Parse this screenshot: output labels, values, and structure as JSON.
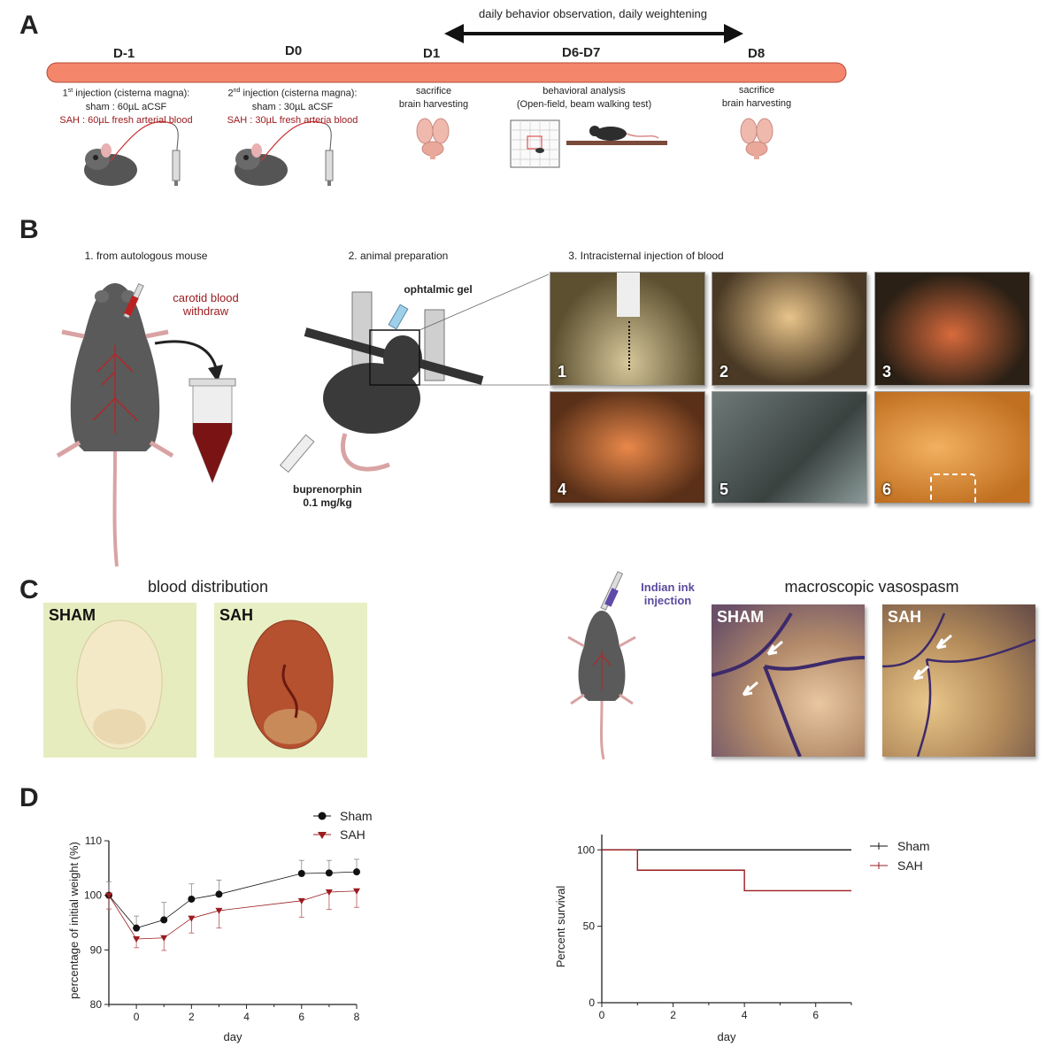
{
  "panels": {
    "A": "A",
    "B": "B",
    "C": "C",
    "D": "D"
  },
  "timeline": {
    "top_arrow_label": "daily behavior observation,  daily weightening",
    "days": [
      "D-1",
      "D0",
      "D1",
      "D6-D7",
      "D8"
    ],
    "steps": [
      {
        "line1_pre": "1",
        "line1_sup": "st",
        "line1_post": " injection (cisterna magna):",
        "line2": "sham : 60µL aCSF",
        "line3": "SAH : 60µL fresh arterial blood"
      },
      {
        "line1_pre": "2",
        "line1_sup": "nd",
        "line1_post": " injection (cisterna magna):",
        "line2": "sham : 30µL aCSF",
        "line3": "SAH : 30µL fresh arteria blood"
      },
      {
        "line1": "sacrifice",
        "line2": "brain harvesting"
      },
      {
        "line1": "behavioral analysis",
        "line2": "(Open-field, beam walking test)"
      },
      {
        "line1": "sacrifice",
        "line2": "brain harvesting"
      }
    ]
  },
  "panelB": {
    "step1": "1. from autologous mouse",
    "step2": "2. animal preparation",
    "step3": "3. Intracisternal injection of blood",
    "carotid1": "carotid blood",
    "carotid2": "withdraw",
    "gel": "ophtalmic gel",
    "bup1": "buprenorphin",
    "bup2": "0.1 mg/kg",
    "photo_numbers": [
      "1",
      "2",
      "3",
      "4",
      "5",
      "6"
    ]
  },
  "panelC": {
    "blood_title": "blood distribution",
    "vaso_title": "macroscopic vasospasm",
    "ink1": "Indian ink",
    "ink2": "injection",
    "sham": "SHAM",
    "sah": "SAH"
  },
  "colors": {
    "sham": "#111111",
    "sah": "#9b1c20",
    "bar": "#f4866c"
  },
  "weight_chart": {
    "type": "line",
    "xlabel": "day",
    "ylabel": "percentage of initial weight (%)",
    "xlim": [
      -1,
      8
    ],
    "ylim": [
      80,
      110
    ],
    "xticks": [
      "0",
      "2",
      "4",
      "6",
      "8"
    ],
    "yticks": [
      "80",
      "90",
      "100",
      "110"
    ],
    "series": [
      {
        "name": "Sham",
        "x": [
          -1,
          0,
          1,
          2,
          3,
          6,
          7,
          8
        ],
        "y": [
          100,
          94,
          95.5,
          99.3,
          100.2,
          104,
          104.1,
          104.3
        ],
        "err": [
          2.5,
          2.2,
          3.2,
          2.8,
          2.6,
          2.4,
          2.3,
          2.3
        ]
      },
      {
        "name": "SAH",
        "x": [
          -1,
          0,
          1,
          2,
          3,
          6,
          7,
          8
        ],
        "y": [
          100,
          92,
          92.2,
          95.8,
          97.2,
          99,
          100.6,
          100.8
        ],
        "err": [
          2.5,
          1.6,
          2.3,
          2.7,
          3.2,
          3.0,
          3.2,
          3.0
        ]
      }
    ]
  },
  "survival_chart": {
    "type": "line",
    "xlabel": "day",
    "ylabel": "Percent survival",
    "xlim": [
      0,
      7
    ],
    "ylim": [
      0,
      110
    ],
    "xticks": [
      "0",
      "2",
      "4",
      "6"
    ],
    "yticks": [
      "0",
      "50",
      "100"
    ],
    "series": [
      {
        "name": "Sham",
        "x": [
          0,
          7
        ],
        "y": [
          100,
          100
        ]
      },
      {
        "name": "SAH",
        "x": [
          0,
          1,
          1,
          4,
          4,
          7
        ],
        "y": [
          100,
          100,
          86.7,
          86.7,
          73.3,
          73.3
        ]
      }
    ]
  }
}
